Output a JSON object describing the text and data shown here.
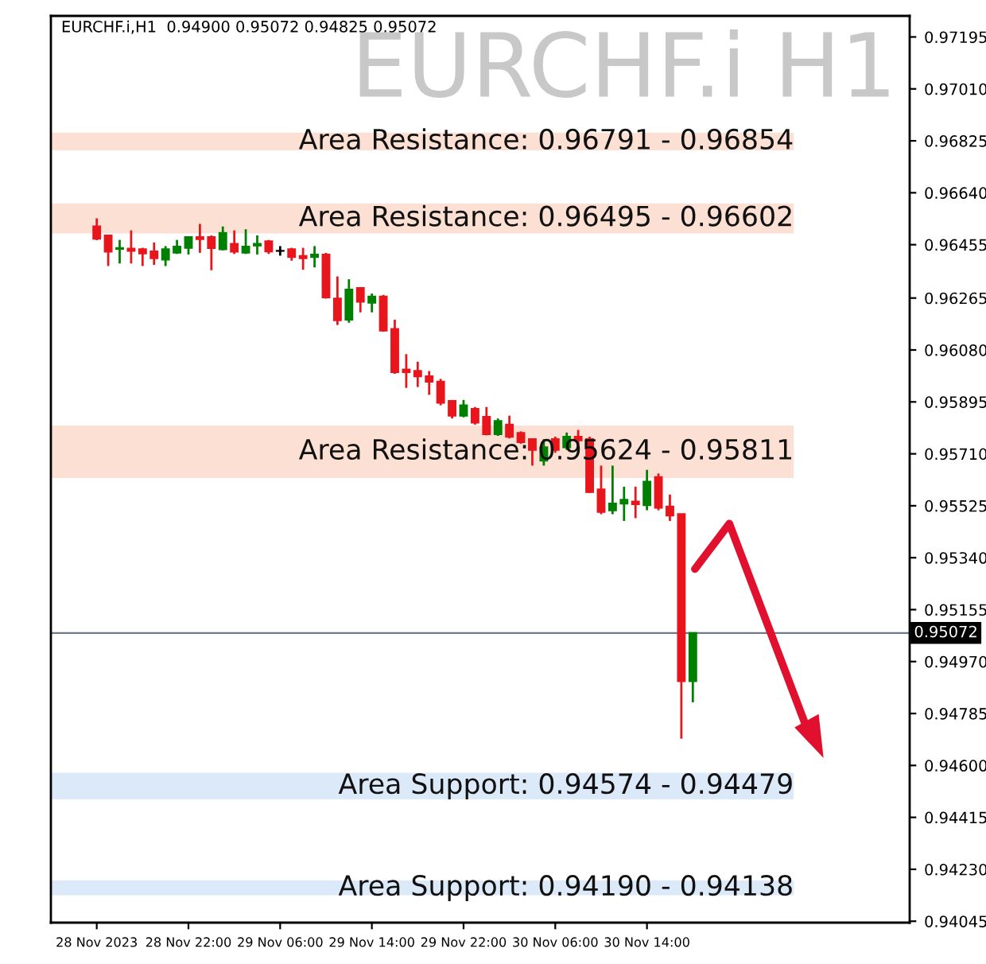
{
  "chart_data": {
    "type": "candlestick",
    "title": "EURCHF.i H1",
    "annotations": [
      "EURCHF.i,H1  0.94900 0.95072 0.94825 0.95072"
    ],
    "x": [
      "2023-11-28T14:00",
      "2023-11-28T15:00",
      "2023-11-28T16:00",
      "2023-11-28T17:00",
      "2023-11-28T18:00",
      "2023-11-28T19:00",
      "2023-11-28T20:00",
      "2023-11-28T21:00",
      "2023-11-28T22:00",
      "2023-11-28T23:00",
      "2023-11-29T00:00",
      "2023-11-29T01:00",
      "2023-11-29T02:00",
      "2023-11-29T03:00",
      "2023-11-29T04:00",
      "2023-11-29T05:00",
      "2023-11-29T06:00",
      "2023-11-29T07:00",
      "2023-11-29T08:00",
      "2023-11-29T09:00",
      "2023-11-29T10:00",
      "2023-11-29T11:00",
      "2023-11-29T12:00",
      "2023-11-29T13:00",
      "2023-11-29T14:00",
      "2023-11-29T15:00",
      "2023-11-29T16:00",
      "2023-11-29T17:00",
      "2023-11-29T18:00",
      "2023-11-29T19:00",
      "2023-11-29T20:00",
      "2023-11-29T21:00",
      "2023-11-29T22:00",
      "2023-11-29T23:00",
      "2023-11-30T00:00",
      "2023-11-30T01:00",
      "2023-11-30T02:00",
      "2023-11-30T03:00",
      "2023-11-30T04:00",
      "2023-11-30T05:00",
      "2023-11-30T06:00",
      "2023-11-30T07:00",
      "2023-11-30T08:00",
      "2023-11-30T09:00",
      "2023-11-30T10:00",
      "2023-11-30T11:00",
      "2023-11-30T12:00",
      "2023-11-30T13:00",
      "2023-11-30T14:00",
      "2023-11-30T15:00",
      "2023-11-30T16:00",
      "2023-11-30T17:00",
      "2023-11-30T18:00"
    ],
    "ohlc": [
      [
        0.9652,
        0.96549,
        0.96471,
        0.96476
      ],
      [
        0.96488,
        0.96491,
        0.96379,
        0.9643
      ],
      [
        0.9644,
        0.96472,
        0.96388,
        0.96443
      ],
      [
        0.96441,
        0.96506,
        0.96388,
        0.96433
      ],
      [
        0.96439,
        0.96444,
        0.96379,
        0.96424
      ],
      [
        0.96431,
        0.96463,
        0.96383,
        0.96407
      ],
      [
        0.96402,
        0.9645,
        0.96379,
        0.96439
      ],
      [
        0.96427,
        0.96472,
        0.96422,
        0.96448
      ],
      [
        0.96444,
        0.96482,
        0.9642,
        0.96482
      ],
      [
        0.96482,
        0.96529,
        0.96426,
        0.96475
      ],
      [
        0.96482,
        0.96488,
        0.96364,
        0.96443
      ],
      [
        0.96439,
        0.9652,
        0.96435,
        0.96497
      ],
      [
        0.96458,
        0.96506,
        0.96422,
        0.9643
      ],
      [
        0.96427,
        0.9651,
        0.96422,
        0.96448
      ],
      [
        0.96452,
        0.96488,
        0.9642,
        0.96458
      ],
      [
        0.96467,
        0.96472,
        0.96422,
        0.96431
      ],
      [
        0.96433,
        0.9645,
        0.96416,
        0.96433
      ],
      [
        0.96439,
        0.96444,
        0.96398,
        0.96411
      ],
      [
        0.96415,
        0.96444,
        0.96366,
        0.96407
      ],
      [
        0.96411,
        0.9645,
        0.96374,
        0.9642
      ],
      [
        0.9642,
        0.96426,
        0.96263,
        0.96267
      ],
      [
        0.96263,
        0.96342,
        0.96169,
        0.96186
      ],
      [
        0.96188,
        0.96332,
        0.96177,
        0.96295
      ],
      [
        0.96301,
        0.96304,
        0.96214,
        0.96252
      ],
      [
        0.96248,
        0.96281,
        0.96214,
        0.9627
      ],
      [
        0.9627,
        0.96276,
        0.96145,
        0.96149
      ],
      [
        0.96155,
        0.96188,
        0.95995,
        0.96001
      ],
      [
        0.9601,
        0.96065,
        0.95945,
        0.96001
      ],
      [
        0.96005,
        0.96038,
        0.95948,
        0.95986
      ],
      [
        0.95986,
        0.96005,
        0.9592,
        0.95967
      ],
      [
        0.95967,
        0.95977,
        0.95883,
        0.95892
      ],
      [
        0.95898,
        0.95902,
        0.95836,
        0.95846
      ],
      [
        0.95846,
        0.95902,
        0.9584,
        0.95883
      ],
      [
        0.9587,
        0.95877,
        0.95814,
        0.95821
      ],
      [
        0.95842,
        0.95877,
        0.95776,
        0.9578
      ],
      [
        0.9578,
        0.95836,
        0.95774,
        0.95827
      ],
      [
        0.95814,
        0.95846,
        0.95765,
        0.95771
      ],
      [
        0.95784,
        0.9579,
        0.95746,
        0.95752
      ],
      [
        0.95762,
        0.95765,
        0.95668,
        0.95724
      ],
      [
        0.95686,
        0.95762,
        0.95668,
        0.95733
      ],
      [
        0.95762,
        0.95771,
        0.95714,
        0.95724
      ],
      [
        0.95733,
        0.95786,
        0.95724,
        0.95771
      ],
      [
        0.95771,
        0.95795,
        0.95742,
        0.95758
      ],
      [
        0.95762,
        0.95771,
        0.95571,
        0.95574
      ],
      [
        0.95583,
        0.95668,
        0.95495,
        0.95503
      ],
      [
        0.95509,
        0.95668,
        0.95495,
        0.95533
      ],
      [
        0.95533,
        0.95593,
        0.95471,
        0.95546
      ],
      [
        0.9554,
        0.95593,
        0.95481,
        0.95531
      ],
      [
        0.95527,
        0.95653,
        0.95509,
        0.95611
      ],
      [
        0.95627,
        0.9564,
        0.95509,
        0.95518
      ],
      [
        0.95522,
        0.95565,
        0.95471,
        0.9549
      ],
      [
        0.95495,
        0.95495,
        0.94695,
        0.949
      ],
      [
        0.949,
        0.95072,
        0.94825,
        0.95072
      ]
    ],
    "colors": [
      "#e8161c",
      "#e8161c",
      "#008000",
      "#e8161c",
      "#e8161c",
      "#e8161c",
      "#008000",
      "#008000",
      "#008000",
      "#e8161c",
      "#e8161c",
      "#008000",
      "#e8161c",
      "#008000",
      "#008000",
      "#e8161c",
      "#000000",
      "#e8161c",
      "#e8161c",
      "#008000",
      "#e8161c",
      "#e8161c",
      "#008000",
      "#e8161c",
      "#008000",
      "#e8161c",
      "#e8161c",
      "#e8161c",
      "#e8161c",
      "#e8161c",
      "#e8161c",
      "#e8161c",
      "#008000",
      "#e8161c",
      "#e8161c",
      "#008000",
      "#e8161c",
      "#e8161c",
      "#e8161c",
      "#008000",
      "#e8161c",
      "#008000",
      "#e8161c",
      "#e8161c",
      "#e8161c",
      "#008000",
      "#008000",
      "#e8161c",
      "#008000",
      "#e8161c",
      "#e8161c",
      "#e8161c",
      "#008000"
    ],
    "xlim": [
      "2023-11-28T10:00",
      "2023-12-01T12:55"
    ],
    "xticks": [
      {
        "value": "2023-11-28T14:00",
        "label": "28 Nov 2023"
      },
      {
        "value": "2023-11-28T22:00",
        "label": "28 Nov 22:00"
      },
      {
        "value": "2023-11-29T06:00",
        "label": "29 Nov 06:00"
      },
      {
        "value": "2023-11-29T14:00",
        "label": "29 Nov 14:00"
      },
      {
        "value": "2023-11-29T22:00",
        "label": "29 Nov 22:00"
      },
      {
        "value": "2023-11-30T06:00",
        "label": "30 Nov 06:00"
      },
      {
        "value": "2023-11-30T14:00",
        "label": "30 Nov 14:00"
      }
    ],
    "ylim": [
      0.9404,
      0.9727
    ],
    "yticks": [
      0.97195,
      {
        "value": 0.9701,
        "label": "0.97010"
      },
      0.96825,
      {
        "value": 0.9664,
        "label": "0.96640"
      },
      0.96455,
      0.96265,
      {
        "value": 0.9608,
        "label": "0.96080"
      },
      0.95895,
      {
        "value": 0.9571,
        "label": "0.95710"
      },
      0.95525,
      {
        "value": 0.9534,
        "label": "0.95340"
      },
      0.95155,
      {
        "value": 0.9497,
        "label": "0.94970"
      },
      0.94785,
      {
        "value": 0.946,
        "label": "0.94600"
      },
      0.94415,
      {
        "value": 0.9423,
        "label": "0.94230"
      },
      0.94045
    ],
    "ref_lines": [
      {
        "axis": "y",
        "value": 0.95072,
        "label": "0.95072",
        "color": "#6c7a89"
      }
    ],
    "bands": [
      {
        "axis": "y",
        "from": 0.96791,
        "to": 0.96854,
        "label": "Area Resistance: 0.96791 - 0.96854",
        "color": "#fbe0d3"
      },
      {
        "axis": "y",
        "from": 0.96495,
        "to": 0.96602,
        "label": "Area Resistance: 0.96495 - 0.96602",
        "color": "#fbe0d3"
      },
      {
        "axis": "y",
        "from": 0.95624,
        "to": 0.95811,
        "label": "Area Resistance: 0.95624 - 0.95811",
        "color": "#fbe0d3"
      },
      {
        "axis": "y",
        "from": 0.94479,
        "to": 0.94574,
        "label": "Area Support: 0.94574 - 0.94479",
        "color": "#dce9f8"
      },
      {
        "axis": "y",
        "from": 0.94138,
        "to": 0.9419,
        "label": "Area Support: 0.94190 - 0.94138",
        "color": "#dce9f8"
      }
    ],
    "grid": false,
    "legend": false
  }
}
